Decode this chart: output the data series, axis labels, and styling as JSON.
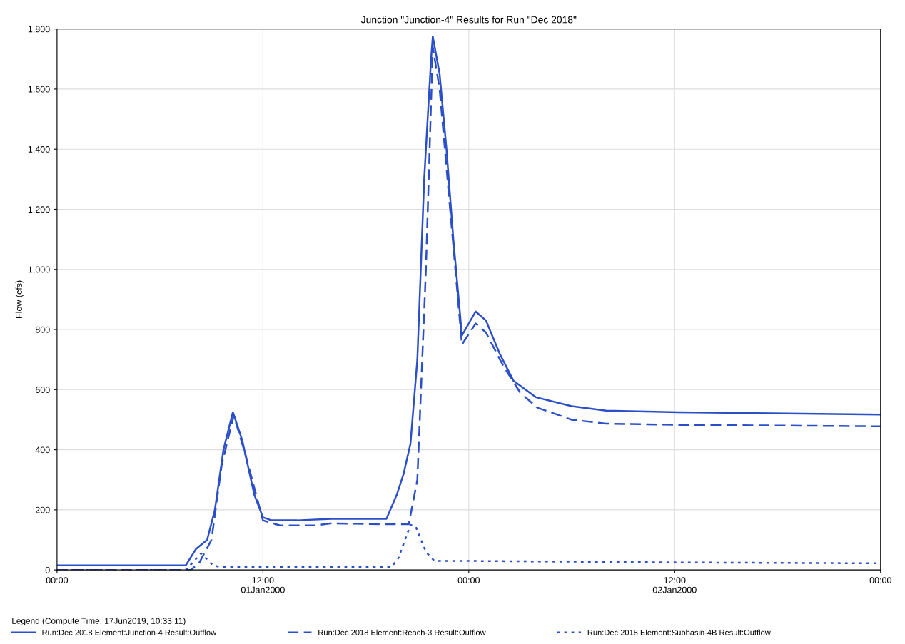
{
  "chart_data": {
    "type": "line",
    "title": "Junction \"Junction-4\" Results for Run \"Dec 2018\"",
    "ylabel": "Flow (cfs)",
    "xlim": [
      "2000-01-01T00:00",
      "2000-01-03T00:00"
    ],
    "xticks": [
      {
        "value": "2000-01-01T00:00",
        "label": "00:00"
      },
      {
        "value": "2000-01-01T12:00",
        "label": "12:00\n01Jan2000"
      },
      {
        "value": "2000-01-02T00:00",
        "label": "00:00"
      },
      {
        "value": "2000-01-02T12:00",
        "label": "12:00\n02Jan2000"
      },
      {
        "value": "2000-01-03T00:00",
        "label": "00:00"
      }
    ],
    "ylim": [
      0,
      1800
    ],
    "yticks": [
      0,
      {
        "value": 200,
        "label": "200"
      },
      {
        "value": 400,
        "label": "400"
      },
      {
        "value": 600,
        "label": "600"
      },
      {
        "value": 800,
        "label": "800"
      },
      {
        "value": 1000,
        "label": "1,000"
      },
      {
        "value": 1200,
        "label": "1,200"
      },
      {
        "value": 1400,
        "label": "1,400"
      },
      {
        "value": 1600,
        "label": "1,600"
      },
      {
        "value": 1800,
        "label": "1,800"
      }
    ],
    "grid": true,
    "legend": "bottom",
    "legend_title": "Legend (Compute Time: 17Jun2019, 10:33:11)",
    "marker": "none",
    "series": [
      {
        "name": "Run:Dec 2018 Element:Junction-4 Result:Outflow",
        "color": "#2a4fc8",
        "line_style": "solid",
        "x": [
          "2000-01-01T00:00",
          "2000-01-01T07:30",
          "2000-01-01T08:06",
          "2000-01-01T08:45",
          "2000-01-01T09:12",
          "2000-01-01T09:42",
          "2000-01-01T10:15",
          "2000-01-01T10:48",
          "2000-01-01T11:30",
          "2000-01-01T12:00",
          "2000-01-01T12:30",
          "2000-01-01T14:00",
          "2000-01-01T16:00",
          "2000-01-01T18:00",
          "2000-01-01T19:12",
          "2000-01-01T19:48",
          "2000-01-01T20:12",
          "2000-01-01T20:36",
          "2000-01-01T21:00",
          "2000-01-01T21:24",
          "2000-01-01T21:48",
          "2000-01-01T21:54",
          "2000-01-01T22:18",
          "2000-01-01T22:42",
          "2000-01-01T23:06",
          "2000-01-01T23:36",
          "2000-01-02T00:24",
          "2000-01-02T01:00",
          "2000-01-02T01:48",
          "2000-01-02T02:36",
          "2000-01-02T03:54",
          "2000-01-02T06:00",
          "2000-01-02T08:00",
          "2000-01-02T12:12",
          "2000-01-03T00:00"
        ],
        "values": [
          15,
          15,
          70,
          100,
          200,
          400,
          525,
          430,
          250,
          175,
          165,
          165,
          170,
          170,
          170,
          250,
          320,
          420,
          700,
          1300,
          1700,
          1775,
          1650,
          1400,
          1100,
          780,
          860,
          830,
          720,
          630,
          575,
          545,
          530,
          525,
          517
        ]
      },
      {
        "name": "Run:Dec 2018 Element:Reach-3 Result:Outflow",
        "color": "#2a4fc8",
        "line_style": "dashed",
        "x": [
          "2000-01-01T00:00",
          "2000-01-01T07:48",
          "2000-01-01T08:18",
          "2000-01-01T09:00",
          "2000-01-01T09:36",
          "2000-01-01T10:18",
          "2000-01-01T11:00",
          "2000-01-01T12:00",
          "2000-01-01T13:00",
          "2000-01-01T15:00",
          "2000-01-01T16:00",
          "2000-01-01T19:00",
          "2000-01-01T20:30",
          "2000-01-01T21:00",
          "2000-01-01T21:30",
          "2000-01-01T21:54",
          "2000-01-01T22:18",
          "2000-01-01T23:36",
          "2000-01-02T00:24",
          "2000-01-02T01:00",
          "2000-01-02T02:00",
          "2000-01-02T03:00",
          "2000-01-02T04:00",
          "2000-01-02T06:00",
          "2000-01-02T08:00",
          "2000-01-02T12:00",
          "2000-01-03T00:00"
        ],
        "values": [
          0,
          0,
          25,
          100,
          350,
          515,
          380,
          165,
          148,
          148,
          155,
          152,
          152,
          300,
          1000,
          1740,
          1600,
          750,
          820,
          790,
          680,
          590,
          540,
          500,
          487,
          483,
          478
        ]
      },
      {
        "name": "Run:Dec 2018 Element:Subbasin-4B Result:Outflow",
        "color": "#2a4fc8",
        "line_style": "dotted",
        "x": [
          "2000-01-01T00:00",
          "2000-01-01T07:30",
          "2000-01-01T08:24",
          "2000-01-01T09:06",
          "2000-01-01T09:30",
          "2000-01-01T19:30",
          "2000-01-01T19:54",
          "2000-01-01T20:36",
          "2000-01-01T20:54",
          "2000-01-01T21:30",
          "2000-01-01T22:00",
          "2000-01-02T00:00",
          "2000-01-02T12:00",
          "2000-01-03T00:00"
        ],
        "values": [
          0,
          0,
          55,
          15,
          10,
          10,
          40,
          150,
          145,
          60,
          30,
          30,
          25,
          22
        ]
      }
    ]
  }
}
